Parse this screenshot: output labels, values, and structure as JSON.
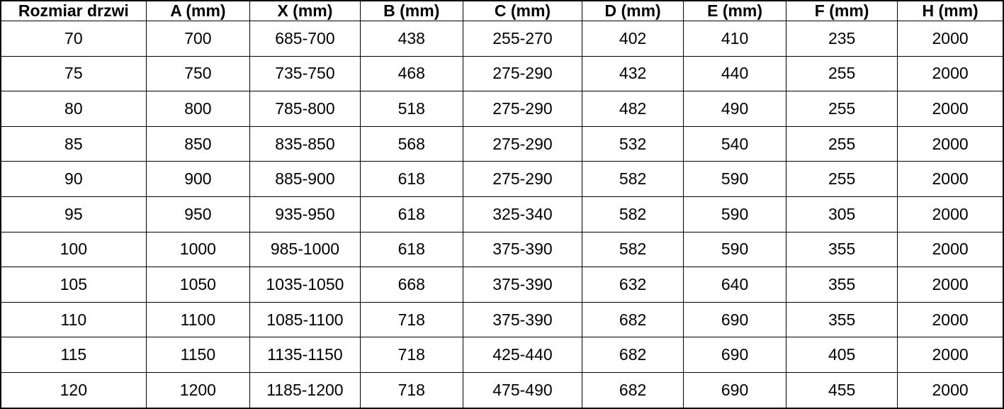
{
  "colors": {
    "border": "#000000",
    "text": "#000000",
    "background": "#ffffff"
  },
  "table": {
    "columns": [
      "Rozmiar drzwi",
      "A (mm)",
      "X (mm)",
      "B (mm)",
      "C (mm)",
      "D (mm)",
      "E (mm)",
      "F (mm)",
      "H (mm)"
    ],
    "rows": [
      [
        "70",
        "700",
        "685-700",
        "438",
        "255-270",
        "402",
        "410",
        "235",
        "2000"
      ],
      [
        "75",
        "750",
        "735-750",
        "468",
        "275-290",
        "432",
        "440",
        "255",
        "2000"
      ],
      [
        "80",
        "800",
        "785-800",
        "518",
        "275-290",
        "482",
        "490",
        "255",
        "2000"
      ],
      [
        "85",
        "850",
        "835-850",
        "568",
        "275-290",
        "532",
        "540",
        "255",
        "2000"
      ],
      [
        "90",
        "900",
        "885-900",
        "618",
        "275-290",
        "582",
        "590",
        "255",
        "2000"
      ],
      [
        "95",
        "950",
        "935-950",
        "618",
        "325-340",
        "582",
        "590",
        "305",
        "2000"
      ],
      [
        "100",
        "1000",
        "985-1000",
        "618",
        "375-390",
        "582",
        "590",
        "355",
        "2000"
      ],
      [
        "105",
        "1050",
        "1035-1050",
        "668",
        "375-390",
        "632",
        "640",
        "355",
        "2000"
      ],
      [
        "110",
        "1100",
        "1085-1100",
        "718",
        "375-390",
        "682",
        "690",
        "355",
        "2000"
      ],
      [
        "115",
        "1150",
        "1135-1150",
        "718",
        "425-440",
        "682",
        "690",
        "405",
        "2000"
      ],
      [
        "120",
        "1200",
        "1185-1200",
        "718",
        "475-490",
        "682",
        "690",
        "455",
        "2000"
      ]
    ]
  },
  "chart_data": {
    "type": "table",
    "title": "",
    "columns": [
      "Rozmiar drzwi",
      "A (mm)",
      "X (mm)",
      "B (mm)",
      "C (mm)",
      "D (mm)",
      "E (mm)",
      "F (mm)",
      "H (mm)"
    ],
    "rows": [
      [
        "70",
        "700",
        "685-700",
        "438",
        "255-270",
        "402",
        "410",
        "235",
        "2000"
      ],
      [
        "75",
        "750",
        "735-750",
        "468",
        "275-290",
        "432",
        "440",
        "255",
        "2000"
      ],
      [
        "80",
        "800",
        "785-800",
        "518",
        "275-290",
        "482",
        "490",
        "255",
        "2000"
      ],
      [
        "85",
        "850",
        "835-850",
        "568",
        "275-290",
        "532",
        "540",
        "255",
        "2000"
      ],
      [
        "90",
        "900",
        "885-900",
        "618",
        "275-290",
        "582",
        "590",
        "255",
        "2000"
      ],
      [
        "95",
        "950",
        "935-950",
        "618",
        "325-340",
        "582",
        "590",
        "305",
        "2000"
      ],
      [
        "100",
        "1000",
        "985-1000",
        "618",
        "375-390",
        "582",
        "590",
        "355",
        "2000"
      ],
      [
        "105",
        "1050",
        "1035-1050",
        "668",
        "375-390",
        "632",
        "640",
        "355",
        "2000"
      ],
      [
        "110",
        "1100",
        "1085-1100",
        "718",
        "375-390",
        "682",
        "690",
        "355",
        "2000"
      ],
      [
        "115",
        "1150",
        "1135-1150",
        "718",
        "425-440",
        "682",
        "690",
        "405",
        "2000"
      ],
      [
        "120",
        "1200",
        "1185-1200",
        "718",
        "475-490",
        "682",
        "690",
        "455",
        "2000"
      ]
    ],
    "layout_hints": {
      "grid": true,
      "header_bold": true,
      "cell_alignment": "center",
      "outer_border_px": 2,
      "inner_border_px": 1
    }
  }
}
